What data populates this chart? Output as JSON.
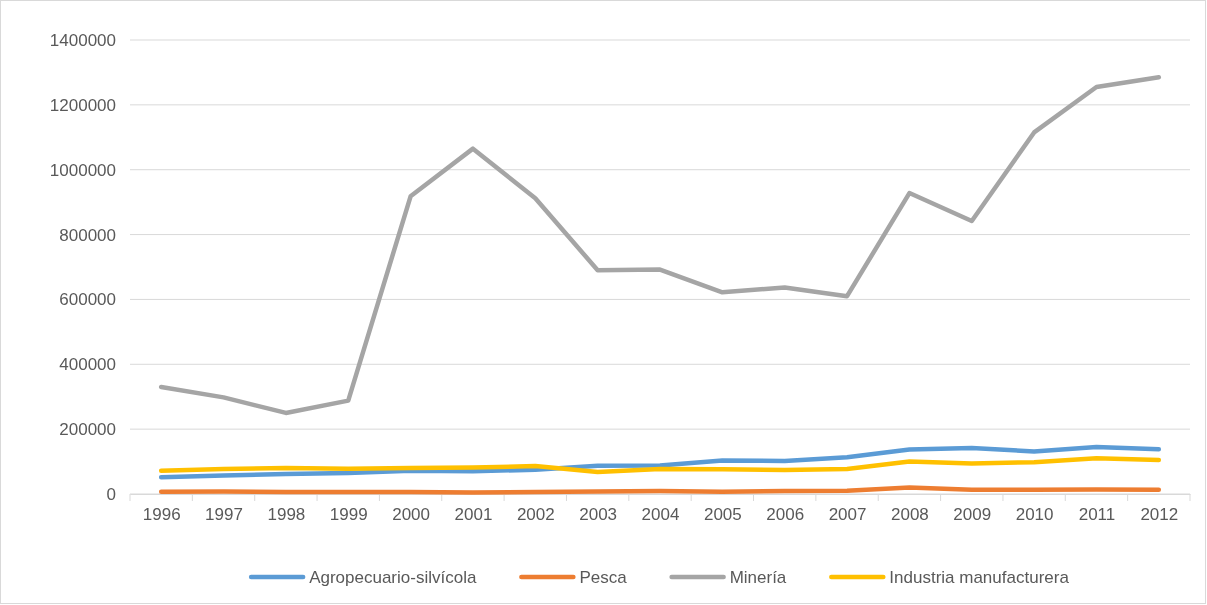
{
  "chart_data": {
    "type": "line",
    "categories": [
      "1996",
      "1997",
      "1998",
      "1999",
      "2000",
      "2001",
      "2002",
      "2003",
      "2004",
      "2005",
      "2006",
      "2007",
      "2008",
      "2009",
      "2010",
      "2011",
      "2012"
    ],
    "series": [
      {
        "name": "Agropecuario-silvícola",
        "color": "#5b9bd5",
        "values": [
          52000,
          57000,
          62000,
          65000,
          72000,
          70000,
          75000,
          87000,
          88000,
          103000,
          102000,
          113000,
          137000,
          142000,
          131000,
          145000,
          138000
        ]
      },
      {
        "name": "Pesca",
        "color": "#ed7d31",
        "values": [
          7000,
          8000,
          6000,
          6000,
          6000,
          5000,
          6000,
          8000,
          9000,
          7000,
          9000,
          10000,
          20000,
          13000,
          13000,
          14000,
          13000
        ]
      },
      {
        "name": "Minería",
        "color": "#a5a5a5",
        "values": [
          330000,
          298000,
          250000,
          288000,
          918000,
          1065000,
          912000,
          690000,
          692000,
          622000,
          637000,
          610000,
          928000,
          842000,
          1115000,
          1255000,
          1285000
        ]
      },
      {
        "name": "Industria manufacturera",
        "color": "#ffc000",
        "values": [
          72000,
          77000,
          80000,
          78000,
          80000,
          82000,
          86000,
          68000,
          77000,
          76000,
          74000,
          77000,
          100000,
          94000,
          98000,
          110000,
          105000
        ]
      }
    ],
    "ylim": [
      0,
      1400000
    ],
    "yticks": [
      0,
      200000,
      400000,
      600000,
      800000,
      1000000,
      1200000,
      1400000
    ],
    "grid": "y",
    "legend": "bottom",
    "marker": "none",
    "line_style": "solid"
  }
}
